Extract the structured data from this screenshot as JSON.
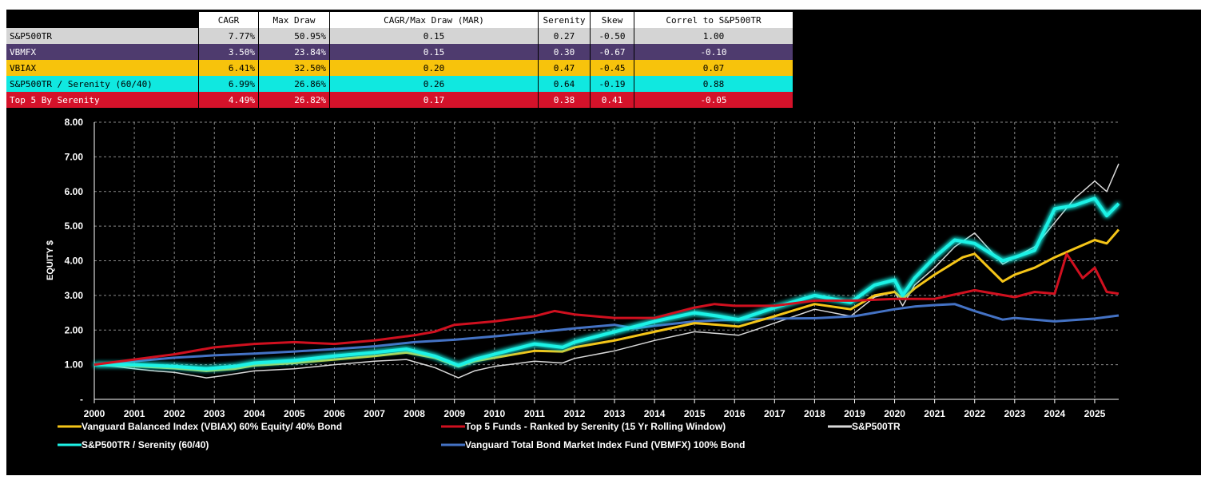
{
  "stats_table": {
    "columns": [
      "CAGR",
      "Max Draw",
      "CAGR/Max Draw (MAR)",
      "Serenity",
      "Skew",
      "Correl to S&P500TR"
    ],
    "rows": [
      {
        "label": "S&P500TR",
        "bg": "#d4d4d4",
        "fg": "#000000",
        "values": [
          "7.77%",
          "50.95%",
          "0.15",
          "0.27",
          "-0.50",
          "1.00"
        ]
      },
      {
        "label": "VBMFX",
        "bg": "#4e3b6e",
        "fg": "#ffffff",
        "values": [
          "3.50%",
          "23.84%",
          "0.15",
          "0.30",
          "-0.67",
          "-0.10"
        ]
      },
      {
        "label": "VBIAX",
        "bg": "#f7c30c",
        "fg": "#000000",
        "values": [
          "6.41%",
          "32.50%",
          "0.20",
          "0.47",
          "-0.45",
          "0.07"
        ]
      },
      {
        "label": "S&P500TR / Serenity (60/40)",
        "bg": "#10e8e0",
        "fg": "#000000",
        "values": [
          "6.99%",
          "26.86%",
          "0.26",
          "0.64",
          "-0.19",
          "0.88"
        ]
      },
      {
        "label": "Top 5 By Serenity",
        "bg": "#d4122a",
        "fg": "#ffffff",
        "values": [
          "4.49%",
          "26.82%",
          "0.17",
          "0.38",
          "0.41",
          "-0.05"
        ]
      }
    ]
  },
  "chart_data": {
    "type": "line",
    "xlabel": "",
    "ylabel": "EQUITY $",
    "xlim": [
      2000,
      2025.6
    ],
    "ylim": [
      0,
      8
    ],
    "y_ticks": [
      {
        "v": 0,
        "label": "-"
      },
      {
        "v": 1,
        "label": "1.00"
      },
      {
        "v": 2,
        "label": "2.00"
      },
      {
        "v": 3,
        "label": "3.00"
      },
      {
        "v": 4,
        "label": "4.00"
      },
      {
        "v": 5,
        "label": "5.00"
      },
      {
        "v": 6,
        "label": "6.00"
      },
      {
        "v": 7,
        "label": "7.00"
      },
      {
        "v": 8,
        "label": "8.00"
      }
    ],
    "x_ticks": [
      "2000",
      "2001",
      "2002",
      "2003",
      "2004",
      "2005",
      "2006",
      "2007",
      "2008",
      "2009",
      "2010",
      "2011",
      "2012",
      "2013",
      "2014",
      "2015",
      "2016",
      "2017",
      "2018",
      "2019",
      "2020",
      "2021",
      "2022",
      "2023",
      "2024",
      "2025"
    ],
    "grid": true,
    "legend_position": "bottom",
    "series": [
      {
        "name": "S&P500TR",
        "color": "#d9d9d9",
        "x": [
          2000,
          2000.5,
          2001,
          2001.5,
          2002,
          2002.5,
          2002.8,
          2003.2,
          2004,
          2005,
          2006,
          2007,
          2007.8,
          2008.5,
          2009.1,
          2009.5,
          2010,
          2011,
          2011.7,
          2012,
          2013,
          2014,
          2015,
          2015.6,
          2016.1,
          2016.5,
          2017,
          2018,
          2018.9,
          2019.5,
          2020,
          2020.2,
          2020.5,
          2021,
          2021.5,
          2022,
          2022.7,
          2023,
          2023.5,
          2024,
          2024.5,
          2025,
          2025.3,
          2025.6
        ],
        "y": [
          1.0,
          0.95,
          0.88,
          0.82,
          0.78,
          0.68,
          0.62,
          0.68,
          0.82,
          0.88,
          1.0,
          1.1,
          1.15,
          0.92,
          0.62,
          0.82,
          0.95,
          1.1,
          1.05,
          1.18,
          1.4,
          1.7,
          1.95,
          1.9,
          1.85,
          2.0,
          2.2,
          2.6,
          2.4,
          2.95,
          3.1,
          2.7,
          3.3,
          3.8,
          4.4,
          4.8,
          3.9,
          4.1,
          4.4,
          5.1,
          5.8,
          6.3,
          6.0,
          6.8
        ]
      },
      {
        "name": "Vanguard Total Bond Market Index Fund (VBMFX) 100% Bond",
        "color": "#4472c4",
        "x": [
          2000,
          2001,
          2002,
          2003,
          2004,
          2005,
          2006,
          2007,
          2008,
          2009,
          2010,
          2011,
          2012,
          2013,
          2013.5,
          2014,
          2015,
          2016,
          2017,
          2018,
          2019,
          2020,
          2020.5,
          2021,
          2021.5,
          2022,
          2022.7,
          2023,
          2024,
          2025,
          2025.6
        ],
        "y": [
          1.0,
          1.1,
          1.2,
          1.27,
          1.32,
          1.38,
          1.45,
          1.53,
          1.65,
          1.72,
          1.82,
          1.93,
          2.05,
          2.15,
          2.05,
          2.12,
          2.25,
          2.3,
          2.33,
          2.34,
          2.4,
          2.6,
          2.68,
          2.72,
          2.75,
          2.55,
          2.3,
          2.35,
          2.25,
          2.33,
          2.42
        ]
      },
      {
        "name": "Vanguard Balanced Index (VBIAX) 60% Equity/ 40% Bond",
        "color": "#f5c518",
        "x": [
          2000,
          2001,
          2002,
          2002.8,
          2003.5,
          2004,
          2005,
          2006,
          2007,
          2007.8,
          2008.5,
          2009.1,
          2009.5,
          2010,
          2011,
          2011.7,
          2012,
          2013,
          2014,
          2015,
          2015.6,
          2016.1,
          2017,
          2018,
          2018.9,
          2019.5,
          2020,
          2020.2,
          2020.5,
          2021,
          2021.7,
          2022,
          2022.7,
          2023,
          2023.5,
          2024,
          2024.5,
          2025,
          2025.3,
          2025.6
        ],
        "y": [
          1.0,
          0.96,
          0.9,
          0.82,
          0.88,
          0.98,
          1.05,
          1.15,
          1.25,
          1.35,
          1.2,
          0.95,
          1.1,
          1.2,
          1.4,
          1.38,
          1.5,
          1.7,
          1.95,
          2.2,
          2.15,
          2.1,
          2.4,
          2.75,
          2.6,
          3.0,
          3.1,
          2.9,
          3.2,
          3.6,
          4.1,
          4.2,
          3.4,
          3.6,
          3.8,
          4.1,
          4.35,
          4.6,
          4.5,
          4.9
        ]
      },
      {
        "name": "S&P500TR / Serenity (60/40)",
        "color": "#1ef2e6",
        "x": [
          2000,
          2001,
          2002,
          2002.8,
          2003.5,
          2004,
          2005,
          2006,
          2007,
          2007.8,
          2008.5,
          2009.1,
          2009.5,
          2010,
          2011,
          2011.7,
          2012,
          2013,
          2014,
          2015,
          2015.6,
          2016.1,
          2017,
          2018,
          2018.9,
          2019.5,
          2020,
          2020.2,
          2020.5,
          2021,
          2021.5,
          2022,
          2022.7,
          2023,
          2023.5,
          2024,
          2024.5,
          2025,
          2025.3,
          2025.6
        ],
        "y": [
          1.0,
          1.0,
          0.95,
          0.88,
          0.95,
          1.05,
          1.12,
          1.25,
          1.35,
          1.45,
          1.25,
          0.98,
          1.15,
          1.3,
          1.6,
          1.5,
          1.65,
          1.95,
          2.25,
          2.5,
          2.4,
          2.3,
          2.65,
          3.0,
          2.8,
          3.3,
          3.45,
          3.0,
          3.5,
          4.1,
          4.6,
          4.5,
          4.0,
          4.1,
          4.3,
          5.5,
          5.6,
          5.8,
          5.3,
          5.65
        ]
      },
      {
        "name": "Top 5 Funds - Ranked by Serenity (15 Yr Rolling Window)",
        "color": "#d0101f",
        "x": [
          2000,
          2001,
          2002,
          2003,
          2004,
          2005,
          2006,
          2007,
          2008,
          2008.5,
          2009,
          2009.5,
          2010,
          2011,
          2011.5,
          2012,
          2013,
          2014,
          2015,
          2015.5,
          2016,
          2017,
          2018,
          2019,
          2020,
          2021,
          2022,
          2023,
          2023.5,
          2024,
          2024.3,
          2024.7,
          2025,
          2025.3,
          2025.6
        ],
        "y": [
          1.0,
          1.15,
          1.3,
          1.5,
          1.6,
          1.65,
          1.6,
          1.7,
          1.85,
          1.95,
          2.15,
          2.2,
          2.25,
          2.4,
          2.55,
          2.45,
          2.35,
          2.35,
          2.65,
          2.75,
          2.7,
          2.7,
          2.85,
          2.85,
          2.9,
          2.9,
          3.15,
          2.95,
          3.1,
          3.05,
          4.2,
          3.5,
          3.8,
          3.1,
          3.05
        ]
      }
    ]
  },
  "legend": [
    {
      "label": "Vanguard Balanced Index (VBIAX) 60% Equity/ 40% Bond",
      "color": "#f5c518"
    },
    {
      "label": "Top 5 Funds - Ranked by Serenity (15 Yr Rolling Window)",
      "color": "#d0101f"
    },
    {
      "label": "S&P500TR",
      "color": "#d9d9d9"
    },
    {
      "label": "S&P500TR / Serenity (60/40)",
      "color": "#1ef2e6"
    },
    {
      "label": "Vanguard Total Bond Market Index Fund (VBMFX) 100% Bond",
      "color": "#4472c4"
    }
  ]
}
